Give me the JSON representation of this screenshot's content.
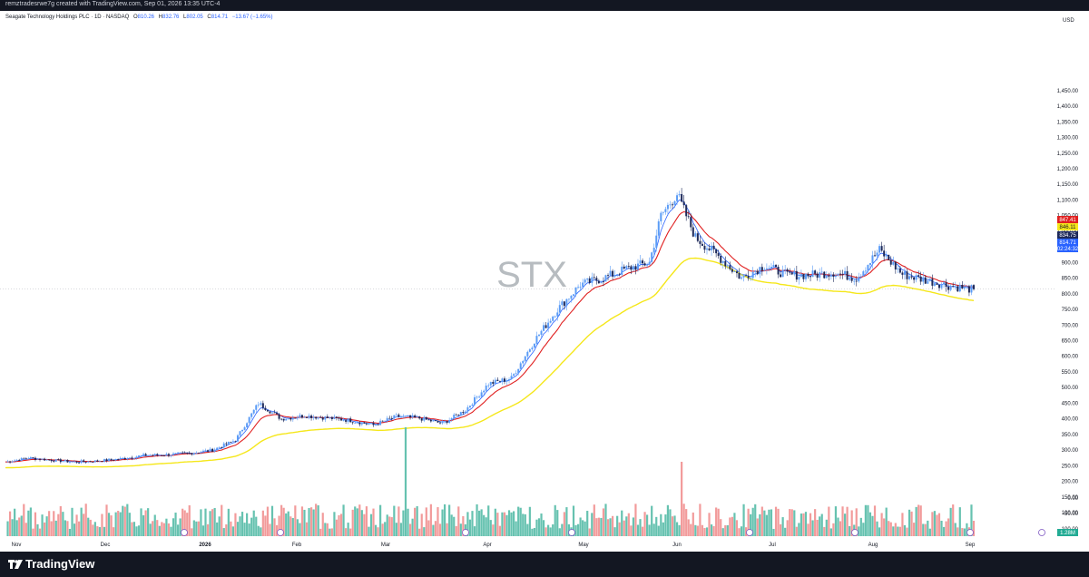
{
  "header": {
    "credit": "remztradesrwe7g created with TradingView.com, Sep 01, 2026 13:35 UTC-4"
  },
  "legend": {
    "symbol_line": "Seagate Technology Holdings PLC · 1D · NASDAQ",
    "o_label": "O",
    "o_value": "810.26",
    "h_label": "H",
    "h_value": "832.76",
    "l_label": "L",
    "l_value": "802.05",
    "c_label": "C",
    "c_value": "814.71",
    "change": "−13.67 (−1.65%)"
  },
  "footer": {
    "brand": "TradingView"
  },
  "colors": {
    "up": "#5b9cf6",
    "down": "#1e2a5a",
    "ema_fast": "#2962ff",
    "ema_mid": "#e02020",
    "ema_slow": "#f5e71b",
    "vol_up": "#66c2b0",
    "vol_down": "#f29b9b",
    "grid_dot": "#b2b5be",
    "accent": "#2962ff"
  },
  "chart_data": {
    "type": "candlestick",
    "watermark": "STX",
    "currency": "USD",
    "y_ticks": [
      0,
      50,
      100,
      150,
      200,
      250,
      300,
      350,
      400,
      450,
      500,
      550,
      600,
      650,
      700,
      750,
      800,
      850,
      900,
      950,
      1000,
      1050,
      1100,
      1150,
      1200,
      1250,
      1300,
      1350,
      1400,
      1450
    ],
    "y_tick_labels": [
      "0.00",
      "50.00",
      "100.00",
      "150.00",
      "200.00",
      "250.00",
      "300.00",
      "350.00",
      "400.00",
      "450.00",
      "500.00",
      "550.00",
      "600.00",
      "650.00",
      "700.00",
      "750.00",
      "800.00",
      "850.00",
      "900.00",
      "950.00",
      "1,000.00",
      "1,050.00",
      "1,100.00",
      "1,150.00",
      "1,200.00",
      "1,250.00",
      "1,300.00",
      "1,350.00",
      "1,400.00",
      "1,450.00"
    ],
    "vol_tick_labels": [
      "0.00",
      "-50.00",
      "-100.00"
    ],
    "x_labels": [
      "Nov",
      "Dec",
      "2026",
      "Feb",
      "Mar",
      "Apr",
      "May",
      "Jun",
      "Jul",
      "Aug",
      "Sep"
    ],
    "price_tags": [
      {
        "label": "847.41",
        "color": "#e02020"
      },
      {
        "label": "846.11",
        "color": "#f5e71b"
      },
      {
        "label": "834.75",
        "color": "#1e2a5a"
      },
      {
        "label": "814.71",
        "color": "#2962ff"
      },
      {
        "label": "02:24:32",
        "color": "#2962ff"
      }
    ],
    "volume_badge": "1.28M",
    "series": [
      {
        "name": "close",
        "anchors": [
          [
            0,
            262
          ],
          [
            10,
            275
          ],
          [
            20,
            268
          ],
          [
            30,
            262
          ],
          [
            40,
            265
          ],
          [
            50,
            272
          ],
          [
            60,
            283
          ],
          [
            70,
            285
          ],
          [
            80,
            290
          ],
          [
            90,
            300
          ],
          [
            100,
            332
          ],
          [
            110,
            450
          ],
          [
            120,
            400
          ],
          [
            130,
            410
          ],
          [
            140,
            403
          ],
          [
            150,
            395
          ],
          [
            160,
            380
          ],
          [
            170,
            408
          ],
          [
            180,
            402
          ],
          [
            190,
            385
          ],
          [
            200,
            428
          ],
          [
            210,
            512
          ],
          [
            220,
            530
          ],
          [
            230,
            650
          ],
          [
            240,
            750
          ],
          [
            250,
            830
          ],
          [
            260,
            850
          ],
          [
            270,
            880
          ],
          [
            280,
            900
          ],
          [
            285,
            1050
          ],
          [
            292,
            1120
          ],
          [
            300,
            980
          ],
          [
            310,
            920
          ],
          [
            320,
            850
          ],
          [
            330,
            890
          ],
          [
            340,
            860
          ],
          [
            350,
            860
          ],
          [
            360,
            868
          ],
          [
            370,
            850
          ],
          [
            380,
            940
          ],
          [
            390,
            862
          ],
          [
            400,
            844
          ],
          [
            410,
            826
          ],
          [
            420,
            814.71
          ]
        ]
      }
    ]
  }
}
